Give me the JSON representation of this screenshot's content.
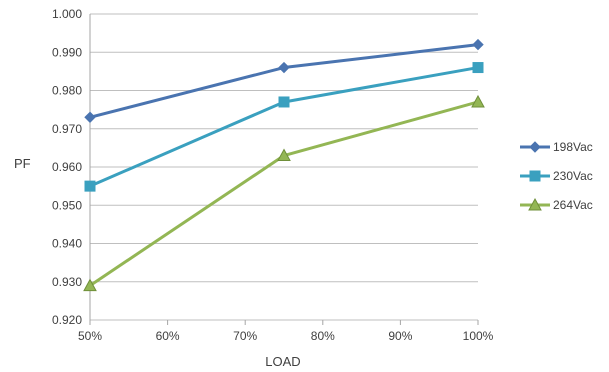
{
  "chart_data": {
    "type": "line",
    "title": "",
    "xlabel": "LOAD",
    "ylabel": "PF",
    "x": [
      0.5,
      0.75,
      1.0
    ],
    "xlim": [
      0.5,
      1.0
    ],
    "xticks": [
      0.5,
      0.6,
      0.7,
      0.8,
      0.9,
      1.0
    ],
    "xtick_labels": [
      "50%",
      "60%",
      "70%",
      "80%",
      "90%",
      "100%"
    ],
    "ylim": [
      0.92,
      1.0
    ],
    "yticks": [
      0.92,
      0.93,
      0.94,
      0.95,
      0.96,
      0.97,
      0.98,
      0.99,
      1.0
    ],
    "ytick_labels": [
      "0.920",
      "0.930",
      "0.940",
      "0.950",
      "0.960",
      "0.970",
      "0.980",
      "0.990",
      "1.000"
    ],
    "grid": true,
    "legend_position": "right",
    "series": [
      {
        "name": "198Vac",
        "values": [
          0.973,
          0.986,
          0.992
        ],
        "color": "#4a74b0",
        "marker": "diamond"
      },
      {
        "name": "230Vac",
        "values": [
          0.955,
          0.977,
          0.986
        ],
        "color": "#3aa0bf",
        "marker": "square"
      },
      {
        "name": "264Vac",
        "values": [
          0.929,
          0.963,
          0.977
        ],
        "color": "#93b654",
        "marker": "triangle"
      }
    ]
  }
}
